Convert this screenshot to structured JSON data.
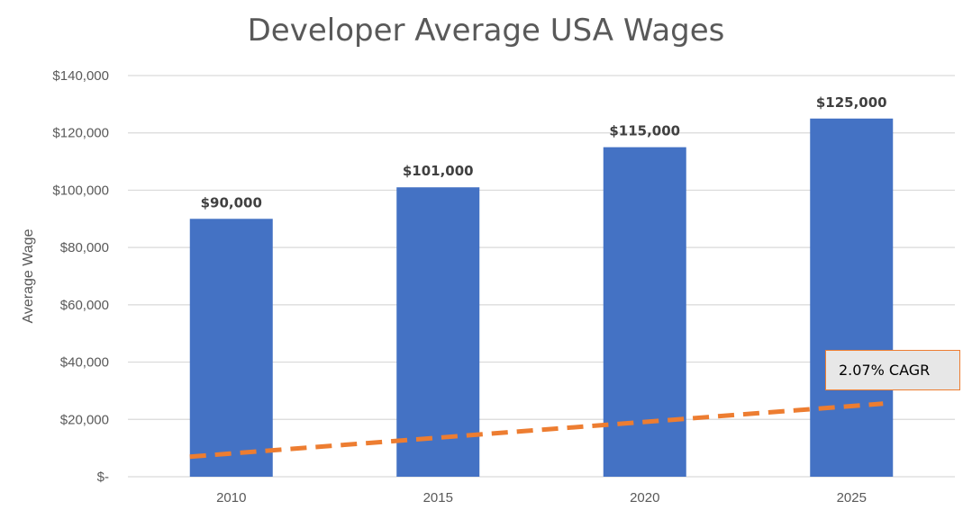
{
  "chart_data": {
    "type": "bar",
    "title": "Developer Average USA Wages",
    "ylabel": "Average Wage",
    "xlabel": "",
    "categories": [
      "2010",
      "2015",
      "2020",
      "2025"
    ],
    "values": [
      90000,
      101000,
      115000,
      125000
    ],
    "value_labels": [
      "$90,000",
      "$101,000",
      "$115,000",
      "$125,000"
    ],
    "ylim": [
      0,
      140000
    ],
    "yticks": [
      0,
      20000,
      40000,
      60000,
      80000,
      100000,
      120000,
      140000
    ],
    "ytick_labels": [
      "$-",
      "$20,000",
      "$40,000",
      "$60,000",
      "$80,000",
      "$100,000",
      "$120,000",
      "$140,000"
    ],
    "grid": true,
    "bar_color": "#4472c4",
    "trendline": {
      "style": "dashed",
      "color": "#ed7d31",
      "y_start": 7000,
      "y_end": 25500
    },
    "annotation": "2.07% CAGR"
  }
}
